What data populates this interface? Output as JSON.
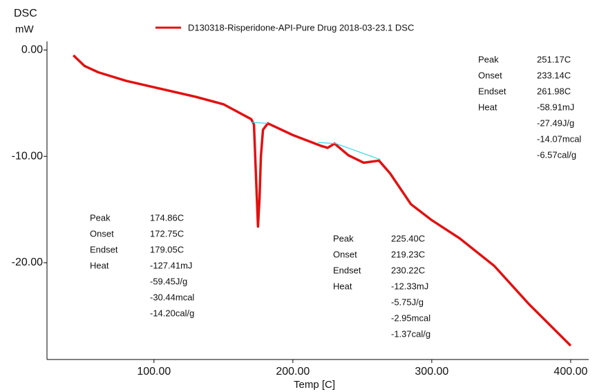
{
  "chart_data": {
    "type": "line",
    "y_label_top": "DSC",
    "y_label_unit": "mW",
    "x_label": "Temp [C]",
    "xlim": [
      23,
      410
    ],
    "ylim": [
      -29.1,
      0.8
    ],
    "xticks": [
      {
        "value": 100,
        "label": "100.00"
      },
      {
        "value": 200,
        "label": "200.00"
      },
      {
        "value": 300,
        "label": "300.00"
      },
      {
        "value": 400,
        "label": "400.00"
      }
    ],
    "yticks": [
      {
        "value": 0,
        "label": "0.00"
      },
      {
        "value": -10,
        "label": "-10.00"
      },
      {
        "value": -20,
        "label": "-20.00"
      }
    ],
    "series": [
      {
        "name": "D130318-Risperidone-API-Pure Drug 2018-03-23.1 DSC",
        "color": "#e31010",
        "x": [
          42,
          50,
          60,
          80,
          100,
          130,
          150,
          170,
          172,
          173.5,
          174.9,
          176,
          177,
          178.5,
          182,
          200,
          220,
          225,
          230,
          240,
          251,
          262,
          270,
          285,
          300,
          320,
          345,
          370,
          400
        ],
        "values": [
          -0.5,
          -1.5,
          -2.1,
          -2.9,
          -3.5,
          -4.4,
          -5.1,
          -6.5,
          -7.0,
          -12,
          -16.6,
          -14,
          -10,
          -7.5,
          -6.9,
          -8.0,
          -9.0,
          -9.2,
          -8.8,
          -9.9,
          -10.6,
          -10.4,
          -11.6,
          -14.5,
          -16.0,
          -17.7,
          -20.3,
          -23.9,
          -27.8
        ]
      }
    ],
    "baselines": [
      {
        "color": "#33d6e0",
        "x": [
          170,
          182
        ],
        "values": [
          -6.8,
          -6.9
        ]
      },
      {
        "color": "#33d6e0",
        "x": [
          218,
          231,
          263
        ],
        "values": [
          -8.7,
          -8.8,
          -10.3
        ]
      }
    ],
    "annotations": [
      {
        "labels": [
          "Peak",
          "Onset",
          "Endset",
          "Heat"
        ],
        "values": [
          "251.17C",
          "233.14C",
          "261.98C",
          "-58.91mJ",
          "-27.49J/g",
          "-14.07mcal",
          "-6.57cal/g"
        ]
      },
      {
        "labels": [
          "Peak",
          "Onset",
          "Endset",
          "Heat"
        ],
        "values": [
          "174.86C",
          "172.75C",
          "179.05C",
          "-127.41mJ",
          "-59.45J/g",
          "-30.44mcal",
          "-14.20cal/g"
        ]
      },
      {
        "labels": [
          "Peak",
          "Onset",
          "Endset",
          "Heat"
        ],
        "values": [
          "225.40C",
          "219.23C",
          "230.22C",
          "-12.33mJ",
          "-5.75J/g",
          "-2.95mcal",
          "-1.37cal/g"
        ]
      }
    ]
  }
}
